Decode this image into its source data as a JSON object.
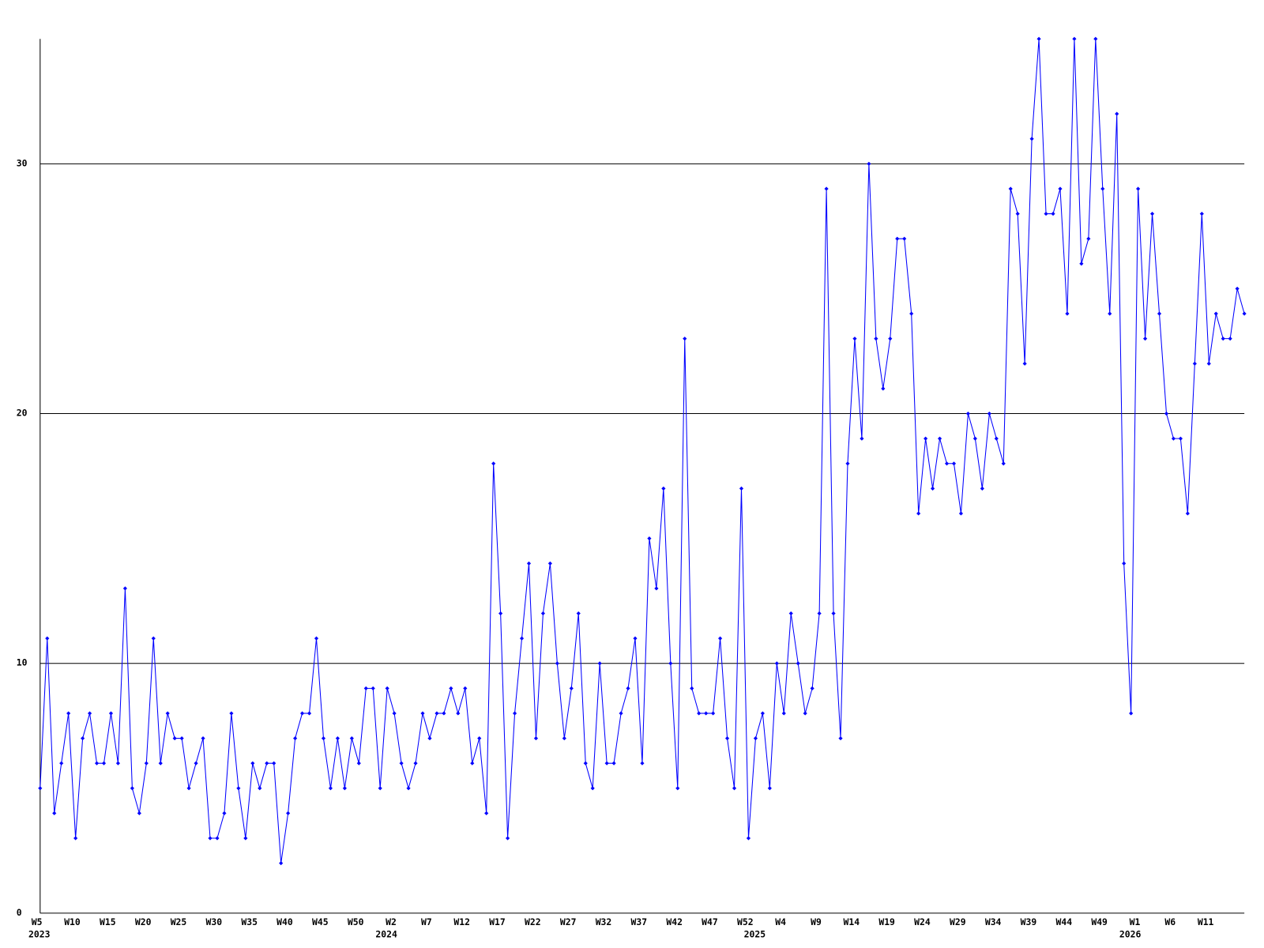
{
  "chart_data": {
    "type": "line",
    "color": "#0000ff",
    "grid": true,
    "ylim": [
      0,
      35
    ],
    "yticks": [
      0,
      10,
      20,
      30
    ],
    "categories": [
      "W5",
      null,
      null,
      null,
      null,
      "W10",
      null,
      null,
      null,
      null,
      "W15",
      null,
      null,
      null,
      null,
      "W20",
      null,
      null,
      null,
      null,
      "W25",
      null,
      null,
      null,
      null,
      "W30",
      null,
      null,
      null,
      null,
      "W35",
      null,
      null,
      null,
      null,
      "W40",
      null,
      null,
      null,
      null,
      "W45",
      null,
      null,
      null,
      null,
      "W50",
      null,
      null,
      null,
      null,
      "W2",
      null,
      null,
      null,
      null,
      "W7",
      null,
      null,
      null,
      null,
      "W12",
      null,
      null,
      null,
      null,
      "W17",
      null,
      null,
      null,
      null,
      "W22",
      null,
      null,
      null,
      null,
      "W27",
      null,
      null,
      null,
      null,
      "W32",
      null,
      null,
      null,
      null,
      "W37",
      null,
      null,
      null,
      null,
      "W42",
      null,
      null,
      null,
      null,
      "W47",
      null,
      null,
      null,
      null,
      "W52",
      null,
      null,
      null,
      null,
      "W4",
      null,
      null,
      null,
      null,
      "W9",
      null,
      null,
      null,
      null,
      "W14",
      null,
      null,
      null,
      null,
      "W19",
      null,
      null,
      null,
      null,
      "W24",
      null,
      null,
      null,
      null,
      "W29",
      null,
      null,
      null,
      null,
      "W34",
      null,
      null,
      null,
      null,
      "W39",
      null,
      null,
      null,
      null,
      "W44",
      null,
      null,
      null,
      null,
      "W49",
      null,
      null,
      null,
      null,
      "W1",
      null,
      null,
      null,
      null,
      "W6",
      null,
      null,
      null,
      null,
      "W11",
      null,
      null,
      null,
      null,
      null
    ],
    "year_labels": [
      "2023",
      null,
      null,
      null,
      null,
      null,
      null,
      null,
      null,
      null,
      null,
      null,
      null,
      null,
      null,
      null,
      null,
      null,
      null,
      null,
      null,
      null,
      null,
      null,
      null,
      null,
      null,
      null,
      null,
      null,
      null,
      null,
      null,
      null,
      null,
      null,
      null,
      null,
      null,
      null,
      null,
      null,
      null,
      null,
      null,
      null,
      null,
      null,
      null,
      "2024",
      null,
      null,
      null,
      null,
      null,
      null,
      null,
      null,
      null,
      null,
      null,
      null,
      null,
      null,
      null,
      null,
      null,
      null,
      null,
      null,
      null,
      null,
      null,
      null,
      null,
      null,
      null,
      null,
      null,
      null,
      null,
      null,
      null,
      null,
      null,
      null,
      null,
      null,
      null,
      null,
      null,
      null,
      null,
      null,
      null,
      null,
      null,
      null,
      null,
      null,
      null,
      "2025",
      null,
      null,
      null,
      null,
      null,
      null,
      null,
      null,
      null,
      null,
      null,
      null,
      null,
      null,
      null,
      null,
      null,
      null,
      null,
      null,
      null,
      null,
      null,
      null,
      null,
      null,
      null,
      null,
      null,
      null,
      null,
      null,
      null,
      null,
      null,
      null,
      null,
      null,
      null,
      null,
      null,
      null,
      null,
      null,
      null,
      null,
      null,
      null,
      null,
      null,
      null,
      null,
      "2026",
      null,
      null,
      null,
      null,
      null,
      null,
      null,
      null,
      null,
      null,
      null,
      null,
      null,
      null,
      null,
      null
    ],
    "values": [
      5,
      11,
      4,
      6,
      8,
      3,
      7,
      8,
      6,
      6,
      8,
      6,
      13,
      5,
      4,
      6,
      11,
      6,
      8,
      7,
      7,
      5,
      6,
      7,
      3,
      3,
      4,
      8,
      5,
      3,
      6,
      5,
      6,
      6,
      2,
      4,
      7,
      8,
      8,
      11,
      7,
      5,
      7,
      5,
      7,
      6,
      9,
      9,
      5,
      9,
      8,
      6,
      5,
      6,
      8,
      7,
      8,
      8,
      9,
      8,
      9,
      6,
      7,
      4,
      18,
      12,
      3,
      8,
      11,
      14,
      7,
      12,
      14,
      10,
      7,
      9,
      12,
      6,
      5,
      10,
      6,
      6,
      8,
      9,
      11,
      6,
      15,
      13,
      17,
      10,
      5,
      23,
      9,
      8,
      8,
      8,
      11,
      7,
      5,
      17,
      3,
      7,
      8,
      5,
      10,
      8,
      12,
      10,
      8,
      9,
      12,
      29,
      12,
      7,
      18,
      23,
      19,
      30,
      23,
      21,
      23,
      27,
      27,
      24,
      16,
      19,
      17,
      19,
      18,
      18,
      16,
      20,
      19,
      17,
      20,
      19,
      18,
      29,
      28,
      22,
      31,
      35,
      28,
      28,
      29,
      24,
      35,
      26,
      27,
      35,
      29,
      24,
      32,
      14,
      8,
      29,
      23,
      28,
      24,
      20,
      19,
      19,
      16,
      22,
      28,
      22,
      24,
      23,
      23,
      25,
      24
    ]
  }
}
